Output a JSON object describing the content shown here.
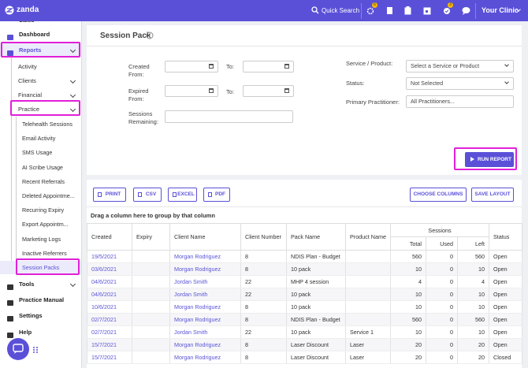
{
  "topbar": {
    "logo": "zanda",
    "search": "Quick Search",
    "badges": [
      6,
      3
    ],
    "clinic": "Your Clinic"
  },
  "sidebar": {
    "top": [
      "Sales",
      "Dashboard",
      "Reports"
    ],
    "reports": [
      "Activity",
      "Clients",
      "Financial",
      "Practice"
    ],
    "practice": [
      "Telehealth Sessions",
      "Email Activity",
      "SMS Usage",
      "AI Scribe Usage",
      "Recent Referrals",
      "Deleted Appointme...",
      "Recurring Expiry",
      "Export Appointm...",
      "Marketing Logs",
      "Inactive Referrers",
      "Session Packs"
    ],
    "bottom": [
      "Tools",
      "Practice Manual",
      "Settings",
      "Help"
    ]
  },
  "page": {
    "title": "Session Pack"
  },
  "filters": {
    "created_from": "Created From:",
    "created_to": "To:",
    "expired_from": "Expired From:",
    "expired_to": "To:",
    "sessions_remaining": "Sessions Remaining:",
    "service_label": "Service / Product:",
    "service_value": "Select a Service or Product",
    "status_label": "Status:",
    "status_value": "Not Selected",
    "practitioner_label": "Primary Practitioner:",
    "practitioner_value": "All Practitioners...",
    "run": "RUN REPORT"
  },
  "toolbar": {
    "left": [
      "PRINT",
      "CSV",
      "EXCEL",
      "PDF"
    ],
    "right": [
      "CHOOSE COLUMNS",
      "SAVE LAYOUT"
    ],
    "group_hint": "Drag a column here to group by that column"
  },
  "table": {
    "columns": [
      "Created",
      "Expiry",
      "Client Name",
      "Client Number",
      "Pack Name",
      "Product Name"
    ],
    "group": "Sessions",
    "subcolumns": [
      "Total",
      "Used",
      "Left"
    ],
    "status": "Status",
    "rows": [
      {
        "created": "19/5/2021",
        "client": "Morgan Rodriguez",
        "number": 8,
        "pack": "NDIS Plan - Budget",
        "total": 560,
        "used": 0,
        "left": 560,
        "status": "Open"
      },
      {
        "created": "03/6/2021",
        "client": "Morgan Rodriguez",
        "number": 8,
        "pack": "10 pack",
        "total": 10,
        "used": 0,
        "left": 10,
        "status": "Open"
      },
      {
        "created": "04/6/2021",
        "client": "Jordan Smith",
        "number": 22,
        "pack": "MHP 4 session",
        "total": 4,
        "used": 0,
        "left": 4,
        "status": "Open"
      },
      {
        "created": "04/6/2021",
        "client": "Jordan Smith",
        "number": 22,
        "pack": "10 pack",
        "total": 10,
        "used": 0,
        "left": 10,
        "status": "Open"
      },
      {
        "created": "10/6/2021",
        "client": "Morgan Rodriguez",
        "number": 8,
        "pack": "10 pack",
        "total": 10,
        "used": 0,
        "left": 10,
        "status": "Open"
      },
      {
        "created": "02/7/2021",
        "client": "Morgan Rodriguez",
        "number": 8,
        "pack": "NDIS Plan - Budget",
        "total": 560,
        "used": 0,
        "left": 560,
        "status": "Open"
      },
      {
        "created": "02/7/2021",
        "client": "Jordan Smith",
        "number": 22,
        "pack": "10 pack",
        "product": "Service 1",
        "total": 10,
        "used": 0,
        "left": 10,
        "status": "Open"
      },
      {
        "created": "15/7/2021",
        "client": "Morgan Rodriguez",
        "number": 8,
        "pack": "Laser Discount",
        "product": "Laser",
        "total": 20,
        "used": 0,
        "left": 20,
        "status": "Open"
      },
      {
        "created": "15/7/2021",
        "client": "Morgan Rodriguez",
        "number": 8,
        "pack": "Laser Discount",
        "product": "Laser",
        "total": 20,
        "used": 0,
        "left": 20,
        "status": "Closed"
      }
    ]
  }
}
